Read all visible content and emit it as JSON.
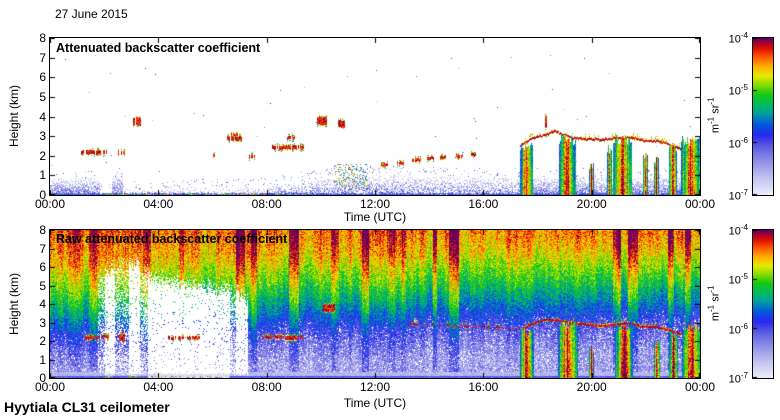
{
  "header": {
    "date": "27 June 2015"
  },
  "footer": {
    "instrument": "Hyytiala CL31 ceilometer"
  },
  "axes": {
    "x_label": "Time (UTC)",
    "x_tick_hours": [
      0,
      4,
      8,
      12,
      16,
      20,
      24
    ],
    "x_ticks": [
      "00:00",
      "04:00",
      "08:00",
      "12:00",
      "16:00",
      "20:00",
      "00:00"
    ],
    "y_label": "Height (km)",
    "y_ticks": [
      "0",
      "1",
      "2",
      "3",
      "4",
      "5",
      "6",
      "7",
      "8"
    ]
  },
  "colorbar": {
    "unit": [
      "m",
      "-1",
      " sr",
      "-1"
    ],
    "ticks": [
      {
        "base": "10",
        "exp": "-4"
      },
      {
        "base": "10",
        "exp": "-5"
      },
      {
        "base": "10",
        "exp": "-6"
      },
      {
        "base": "10",
        "exp": "-7"
      }
    ],
    "scale": "log",
    "range": [
      1e-07,
      0.0001
    ],
    "colormap_stops": [
      [
        0.0,
        [
          236,
          236,
          250
        ]
      ],
      [
        0.1,
        [
          198,
          198,
          242
        ]
      ],
      [
        0.2,
        [
          150,
          150,
          232
        ]
      ],
      [
        0.3,
        [
          96,
          96,
          226
        ]
      ],
      [
        0.38,
        [
          40,
          40,
          238
        ]
      ],
      [
        0.45,
        [
          0,
          90,
          220
        ]
      ],
      [
        0.52,
        [
          0,
          160,
          160
        ]
      ],
      [
        0.58,
        [
          0,
          190,
          90
        ]
      ],
      [
        0.64,
        [
          20,
          200,
          20
        ]
      ],
      [
        0.7,
        [
          130,
          220,
          0
        ]
      ],
      [
        0.76,
        [
          232,
          232,
          0
        ]
      ],
      [
        0.82,
        [
          255,
          175,
          0
        ]
      ],
      [
        0.88,
        [
          255,
          90,
          0
        ]
      ],
      [
        0.93,
        [
          230,
          20,
          0
        ]
      ],
      [
        0.97,
        [
          168,
          0,
          45
        ]
      ],
      [
        1.0,
        [
          100,
          0,
          100
        ]
      ]
    ]
  },
  "chart_data": [
    {
      "type": "heatmap",
      "title": "Attenuated backscatter coefficient",
      "xlabel": "Time (UTC)",
      "ylabel": "Height (km)",
      "x_range_hours": [
        0,
        24
      ],
      "y_range_km": [
        0,
        8
      ],
      "color_scale": {
        "type": "log",
        "min": 1e-07,
        "max": 0.0001,
        "units": "m-1 sr-1"
      },
      "background": "white (below 1e-7)",
      "boundary_layer": [
        {
          "t0": 0.0,
          "t1": 1.8,
          "h0": 0.85,
          "h1": 0.85,
          "d": 0.85
        },
        {
          "t0": 1.8,
          "t1": 2.3,
          "h0": 0.12,
          "h1": 0.12,
          "d": 0.5
        },
        {
          "t0": 2.3,
          "t1": 2.65,
          "h0": 0.9,
          "h1": 0.9,
          "d": 0.95
        },
        {
          "t0": 2.65,
          "t1": 8.0,
          "h0": 0.25,
          "h1": 0.35,
          "d": 0.45
        },
        {
          "t0": 8.0,
          "t1": 11.0,
          "h0": 0.4,
          "h1": 1.0,
          "d": 0.6
        },
        {
          "t0": 11.0,
          "t1": 17.3,
          "h0": 1.0,
          "h1": 0.85,
          "d": 0.6
        },
        {
          "t0": 17.3,
          "t1": 24.0,
          "h0": 0.85,
          "h1": 0.9,
          "d": 0.85
        }
      ],
      "surface_line": {
        "t0": 2.0,
        "t1": 9.6,
        "h": 0.08
      },
      "mixed_speckle": [
        {
          "t0": 10.5,
          "t1": 11.7,
          "h0": 0.3,
          "h1": 1.6,
          "p": 0.22
        }
      ],
      "clouds": [
        {
          "t0": 1.15,
          "t1": 2.05,
          "h": 2.2,
          "th": 0.16
        },
        {
          "t0": 2.5,
          "t1": 2.72,
          "h": 2.2,
          "th": 0.15
        },
        {
          "t0": 3.05,
          "t1": 3.32,
          "h": 3.78,
          "th": 0.35
        },
        {
          "t0": 5.9,
          "t1": 6.05,
          "h": 2.05,
          "th": 0.1
        },
        {
          "t0": 6.55,
          "t1": 7.05,
          "h": 2.9,
          "th": 0.18
        },
        {
          "t0": 6.7,
          "t1": 6.9,
          "h": 3.1,
          "th": 0.1
        },
        {
          "t0": 7.35,
          "t1": 7.52,
          "h": 2.0,
          "th": 0.12
        },
        {
          "t0": 8.2,
          "t1": 9.35,
          "h": 2.45,
          "th": 0.14
        },
        {
          "t0": 8.75,
          "t1": 9.0,
          "h": 2.95,
          "th": 0.1
        },
        {
          "t0": 9.85,
          "t1": 10.2,
          "h": 3.8,
          "th": 0.35
        },
        {
          "t0": 10.6,
          "t1": 10.85,
          "h": 3.65,
          "th": 0.28
        },
        {
          "t0": 12.2,
          "t1": 12.45,
          "h": 1.55,
          "th": 0.1
        },
        {
          "t0": 12.8,
          "t1": 13.05,
          "h": 1.65,
          "th": 0.1
        },
        {
          "t0": 13.35,
          "t1": 13.65,
          "h": 1.8,
          "th": 0.12
        },
        {
          "t0": 13.9,
          "t1": 14.15,
          "h": 1.9,
          "th": 0.1
        },
        {
          "t0": 14.4,
          "t1": 14.6,
          "h": 1.95,
          "th": 0.1
        },
        {
          "t0": 14.95,
          "t1": 15.2,
          "h": 2.0,
          "th": 0.12
        },
        {
          "t0": 15.55,
          "t1": 15.7,
          "h": 2.05,
          "th": 0.1
        },
        {
          "t0": 18.28,
          "t1": 18.4,
          "h": 3.7,
          "th": 0.55
        }
      ],
      "cloud_base_line": {
        "dash_until": 17.3,
        "points": [
          [
            17.35,
            2.55
          ],
          [
            17.8,
            2.95
          ],
          [
            18.3,
            3.1
          ],
          [
            18.6,
            3.3
          ],
          [
            18.9,
            3.15
          ],
          [
            19.3,
            2.95
          ],
          [
            19.8,
            2.9
          ],
          [
            20.4,
            2.85
          ],
          [
            20.9,
            2.95
          ],
          [
            21.4,
            3.0
          ],
          [
            21.9,
            2.8
          ],
          [
            22.4,
            2.8
          ],
          [
            22.9,
            2.6
          ],
          [
            23.4,
            2.35
          ],
          [
            23.7,
            2.45
          ],
          [
            24.0,
            2.55
          ]
        ]
      },
      "rain_streaks": [
        {
          "t0": 17.35,
          "t1": 17.8,
          "h": 2.5
        },
        {
          "t0": 18.8,
          "t1": 19.4,
          "h": 2.9
        },
        {
          "t0": 19.9,
          "t1": 20.05,
          "h": 1.5
        },
        {
          "t0": 20.55,
          "t1": 20.72,
          "h": 2.4
        },
        {
          "t0": 20.8,
          "t1": 21.45,
          "h": 2.9
        },
        {
          "t0": 21.9,
          "t1": 22.05,
          "h": 2.0
        },
        {
          "t0": 22.3,
          "t1": 22.45,
          "h": 1.8
        },
        {
          "t0": 22.85,
          "t1": 23.1,
          "h": 2.5
        },
        {
          "t0": 23.3,
          "t1": 24.0,
          "h": 2.8
        }
      ]
    },
    {
      "type": "heatmap",
      "title": "Raw attenuated backscatter coefficient",
      "xlabel": "Time (UTC)",
      "ylabel": "Height (km)",
      "x_range_hours": [
        0,
        24
      ],
      "y_range_km": [
        0,
        8
      ],
      "color_scale": {
        "type": "log",
        "min": 1e-07,
        "max": 0.0001,
        "units": "m-1 sr-1"
      },
      "background": "instrument noise increasing with height",
      "noise_profile": [
        [
          0.0,
          0.3
        ],
        [
          0.16,
          0.3
        ],
        [
          0.17,
          0.13
        ],
        [
          0.34,
          0.13
        ],
        [
          0.35,
          0.18
        ],
        [
          0.8,
          0.22
        ],
        [
          1.5,
          0.27
        ],
        [
          2.0,
          0.32
        ],
        [
          2.6,
          0.4
        ],
        [
          3.2,
          0.48
        ],
        [
          3.8,
          0.55
        ],
        [
          4.5,
          0.63
        ],
        [
          5.2,
          0.7
        ],
        [
          6.0,
          0.78
        ],
        [
          6.8,
          0.83
        ],
        [
          7.5,
          0.86
        ],
        [
          8.0,
          0.88
        ]
      ],
      "noise_rise_km_per_day": 1.2,
      "white_attenuation_blocks": [
        {
          "t0": 1.78,
          "t1": 2.02,
          "h0": 0.3,
          "h1a": 5.5,
          "h1b": 5.8,
          "d": 0.35
        },
        {
          "t0": 2.02,
          "t1": 2.38,
          "h0": 0.25,
          "h1a": 6.0,
          "h1b": 6.0,
          "d": 0.93
        },
        {
          "t0": 2.38,
          "t1": 2.9,
          "h0": 0.3,
          "h1a": 6.2,
          "h1b": 6.2,
          "d": 0.38
        },
        {
          "t0": 2.9,
          "t1": 3.28,
          "h0": 0.25,
          "h1a": 6.3,
          "h1b": 6.3,
          "d": 0.93
        },
        {
          "t0": 3.28,
          "t1": 3.6,
          "h0": 0.3,
          "h1a": 5.9,
          "h1b": 5.9,
          "d": 0.5
        },
        {
          "t0": 3.6,
          "t1": 6.6,
          "h0": 0.22,
          "h1a": 5.6,
          "h1b": 4.8,
          "d": 0.95,
          "grayBase": true
        },
        {
          "t0": 6.6,
          "t1": 6.85,
          "h0": 0.25,
          "h1a": 4.8,
          "h1b": 4.7,
          "d": 0.55
        },
        {
          "t0": 6.85,
          "t1": 7.28,
          "h0": 0.22,
          "h1a": 4.7,
          "h1b": 4.4,
          "d": 0.93
        }
      ],
      "clouds": [
        {
          "t0": 1.3,
          "t1": 1.8,
          "h": 2.2,
          "th": 0.15
        },
        {
          "t0": 1.95,
          "t1": 2.15,
          "h": 2.25,
          "th": 0.12
        },
        {
          "t0": 2.55,
          "t1": 2.75,
          "h": 2.2,
          "th": 0.3
        },
        {
          "t0": 4.35,
          "t1": 4.9,
          "h": 2.2,
          "th": 0.12
        },
        {
          "t0": 5.05,
          "t1": 5.55,
          "h": 2.2,
          "th": 0.1
        },
        {
          "t0": 7.85,
          "t1": 8.55,
          "h": 2.25,
          "th": 0.12
        },
        {
          "t0": 8.6,
          "t1": 9.3,
          "h": 2.2,
          "th": 0.14
        },
        {
          "t0": 10.05,
          "t1": 10.5,
          "h": 3.8,
          "th": 0.35
        }
      ],
      "cloud_base_line": {
        "dash_until": 17.35,
        "points": [
          [
            13.2,
            2.95
          ],
          [
            14.0,
            2.9
          ],
          [
            15.0,
            2.85
          ],
          [
            16.0,
            2.8
          ],
          [
            16.8,
            2.75
          ],
          [
            17.35,
            2.6
          ],
          [
            17.8,
            3.0
          ],
          [
            18.3,
            3.2
          ],
          [
            18.8,
            3.15
          ],
          [
            19.3,
            3.0
          ],
          [
            19.8,
            2.95
          ],
          [
            20.4,
            2.85
          ],
          [
            20.9,
            2.95
          ],
          [
            21.4,
            3.0
          ],
          [
            21.9,
            2.8
          ],
          [
            22.4,
            2.8
          ],
          [
            22.9,
            2.6
          ],
          [
            23.4,
            2.35
          ],
          [
            23.7,
            2.45
          ],
          [
            24.0,
            2.55
          ]
        ]
      },
      "rain_streaks": [
        {
          "t0": 17.35,
          "t1": 17.85,
          "h": 2.6
        },
        {
          "t0": 18.75,
          "t1": 19.45,
          "h": 3.0
        },
        {
          "t0": 19.9,
          "t1": 20.05,
          "h": 1.6
        },
        {
          "t0": 20.85,
          "t1": 21.5,
          "h": 2.9
        },
        {
          "t0": 22.3,
          "t1": 22.5,
          "h": 1.9
        },
        {
          "t0": 22.85,
          "t1": 23.15,
          "h": 2.4
        },
        {
          "t0": 23.35,
          "t1": 24.0,
          "h": 2.8
        }
      ]
    }
  ]
}
